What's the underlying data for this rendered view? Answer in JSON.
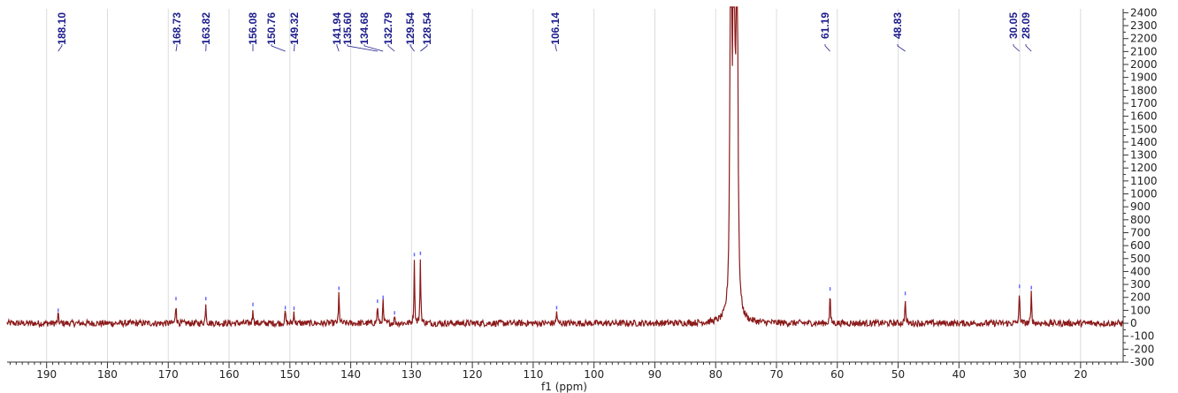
{
  "chart_data": {
    "type": "line",
    "xlabel": "f1 (ppm)",
    "ylabel": "",
    "x_reversed": true,
    "xlim": [
      13,
      196.5
    ],
    "ylim": [
      -300,
      2430
    ],
    "x_ticks": [
      190,
      180,
      170,
      160,
      150,
      140,
      130,
      120,
      110,
      100,
      90,
      80,
      70,
      60,
      50,
      40,
      30,
      20
    ],
    "y_ticks": [
      -300,
      -200,
      -100,
      0,
      100,
      200,
      300,
      400,
      500,
      600,
      700,
      800,
      900,
      1000,
      1100,
      1200,
      1300,
      1400,
      1500,
      1600,
      1700,
      1800,
      1900,
      2000,
      2100,
      2200,
      2300,
      2400
    ],
    "peak_labels": [
      "188.10",
      "168.73",
      "163.82",
      "156.08",
      "150.76",
      "149.32",
      "141.94",
      "135.60",
      "134.68",
      "132.79",
      "129.54",
      "128.54",
      "106.14",
      "61.19",
      "48.83",
      "30.05",
      "28.09"
    ],
    "peaks": [
      {
        "ppm": 188.1,
        "intensity": 80
      },
      {
        "ppm": 168.73,
        "intensity": 170
      },
      {
        "ppm": 163.82,
        "intensity": 170
      },
      {
        "ppm": 156.08,
        "intensity": 125
      },
      {
        "ppm": 150.76,
        "intensity": 100
      },
      {
        "ppm": 149.32,
        "intensity": 95
      },
      {
        "ppm": 141.94,
        "intensity": 250
      },
      {
        "ppm": 135.6,
        "intensity": 150
      },
      {
        "ppm": 134.68,
        "intensity": 180
      },
      {
        "ppm": 132.79,
        "intensity": 60
      },
      {
        "ppm": 129.54,
        "intensity": 510
      },
      {
        "ppm": 128.54,
        "intensity": 520
      },
      {
        "ppm": 106.14,
        "intensity": 100
      },
      {
        "ppm": 77.5,
        "intensity": 5000
      },
      {
        "ppm": 77.0,
        "intensity": 5000
      },
      {
        "ppm": 76.5,
        "intensity": 5000
      },
      {
        "ppm": 61.19,
        "intensity": 245
      },
      {
        "ppm": 48.83,
        "intensity": 210
      },
      {
        "ppm": 30.05,
        "intensity": 265
      },
      {
        "ppm": 28.09,
        "intensity": 255
      }
    ],
    "noise_level": 25,
    "grid": true,
    "colors": {
      "spectrum": "#8b1a1a",
      "label": "#1c1c8c",
      "grid": "#dcdcdc",
      "axis": "#333333",
      "peak_marker": "#6a6aff"
    }
  }
}
